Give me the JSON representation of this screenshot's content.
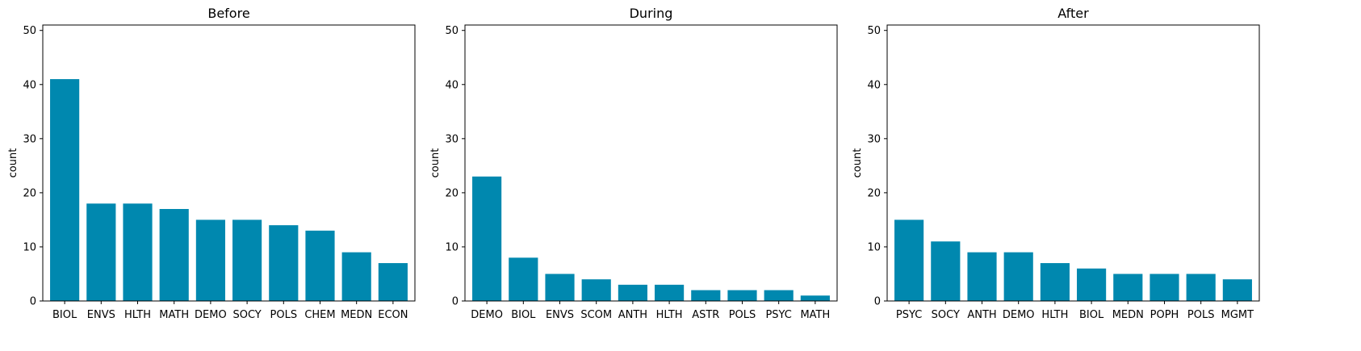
{
  "chart_data": [
    {
      "type": "bar",
      "title": "Before",
      "xlabel": "",
      "ylabel": "count",
      "ylim": [
        0,
        51
      ],
      "yticks": [
        0,
        10,
        20,
        30,
        40,
        50
      ],
      "categories": [
        "BIOL",
        "ENVS",
        "HLTH",
        "MATH",
        "DEMO",
        "SOCY",
        "POLS",
        "CHEM",
        "MEDN",
        "ECON"
      ],
      "values": [
        41,
        18,
        18,
        17,
        15,
        15,
        14,
        13,
        9,
        7
      ],
      "bar_color": "#0088AF"
    },
    {
      "type": "bar",
      "title": "During",
      "xlabel": "",
      "ylabel": "count",
      "ylim": [
        0,
        51
      ],
      "yticks": [
        0,
        10,
        20,
        30,
        40,
        50
      ],
      "categories": [
        "DEMO",
        "BIOL",
        "ENVS",
        "SCOM",
        "ANTH",
        "HLTH",
        "ASTR",
        "POLS",
        "PSYC",
        "MATH"
      ],
      "values": [
        23,
        8,
        5,
        4,
        3,
        3,
        2,
        2,
        2,
        1
      ],
      "bar_color": "#0088AF"
    },
    {
      "type": "bar",
      "title": "After",
      "xlabel": "",
      "ylabel": "count",
      "ylim": [
        0,
        51
      ],
      "yticks": [
        0,
        10,
        20,
        30,
        40,
        50
      ],
      "categories": [
        "PSYC",
        "SOCY",
        "ANTH",
        "DEMO",
        "HLTH",
        "BIOL",
        "MEDN",
        "POPH",
        "POLS",
        "MGMT"
      ],
      "values": [
        15,
        11,
        9,
        9,
        7,
        6,
        5,
        5,
        5,
        4
      ],
      "bar_color": "#0088AF"
    }
  ]
}
